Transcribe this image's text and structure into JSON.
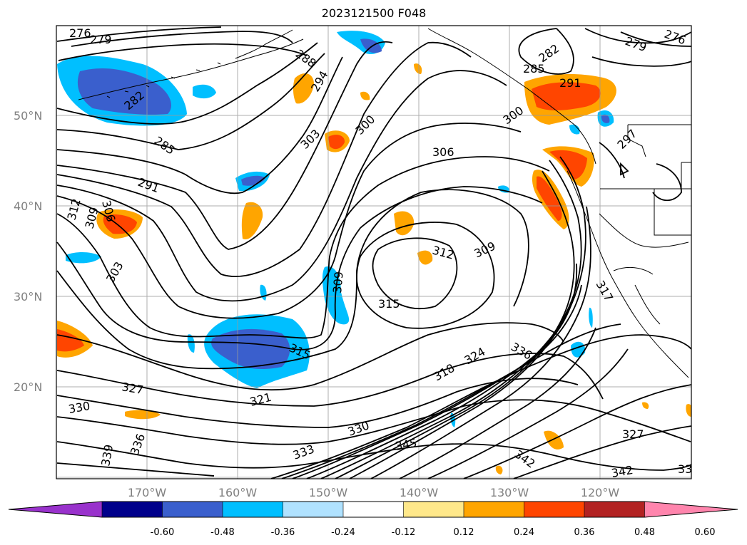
{
  "title": "2023121500 F048",
  "map": {
    "lat_ticks": [
      "50°N",
      "40°N",
      "30°N",
      "20°N"
    ],
    "lon_ticks": [
      "170°W",
      "160°W",
      "150°W",
      "140°W",
      "130°W",
      "120°W"
    ],
    "contour_labels": [
      "276",
      "279",
      "288",
      "294",
      "282",
      "285",
      "291",
      "279",
      "276",
      "282",
      "300",
      "303",
      "285",
      "291",
      "306",
      "297",
      "312",
      "309",
      "306",
      "300",
      "303",
      "312",
      "309",
      "309",
      "315",
      "315",
      "327",
      "321",
      "318",
      "324",
      "336",
      "330",
      "330",
      "333",
      "336",
      "339",
      "345",
      "342",
      "327",
      "342",
      "33",
      "317"
    ]
  },
  "colorbar": {
    "labels": [
      "-0.60",
      "-0.48",
      "-0.36",
      "-0.24",
      "-0.12",
      "0.12",
      "0.24",
      "0.36",
      "0.48",
      "0.60"
    ],
    "colors": [
      "#9932cc",
      "#00008b",
      "#3a5fcd",
      "#00bfff",
      "#b0e2ff",
      "#ffffff",
      "#ffe88a",
      "#ffa500",
      "#ff4500",
      "#b22222",
      "#ff85ad"
    ]
  }
}
